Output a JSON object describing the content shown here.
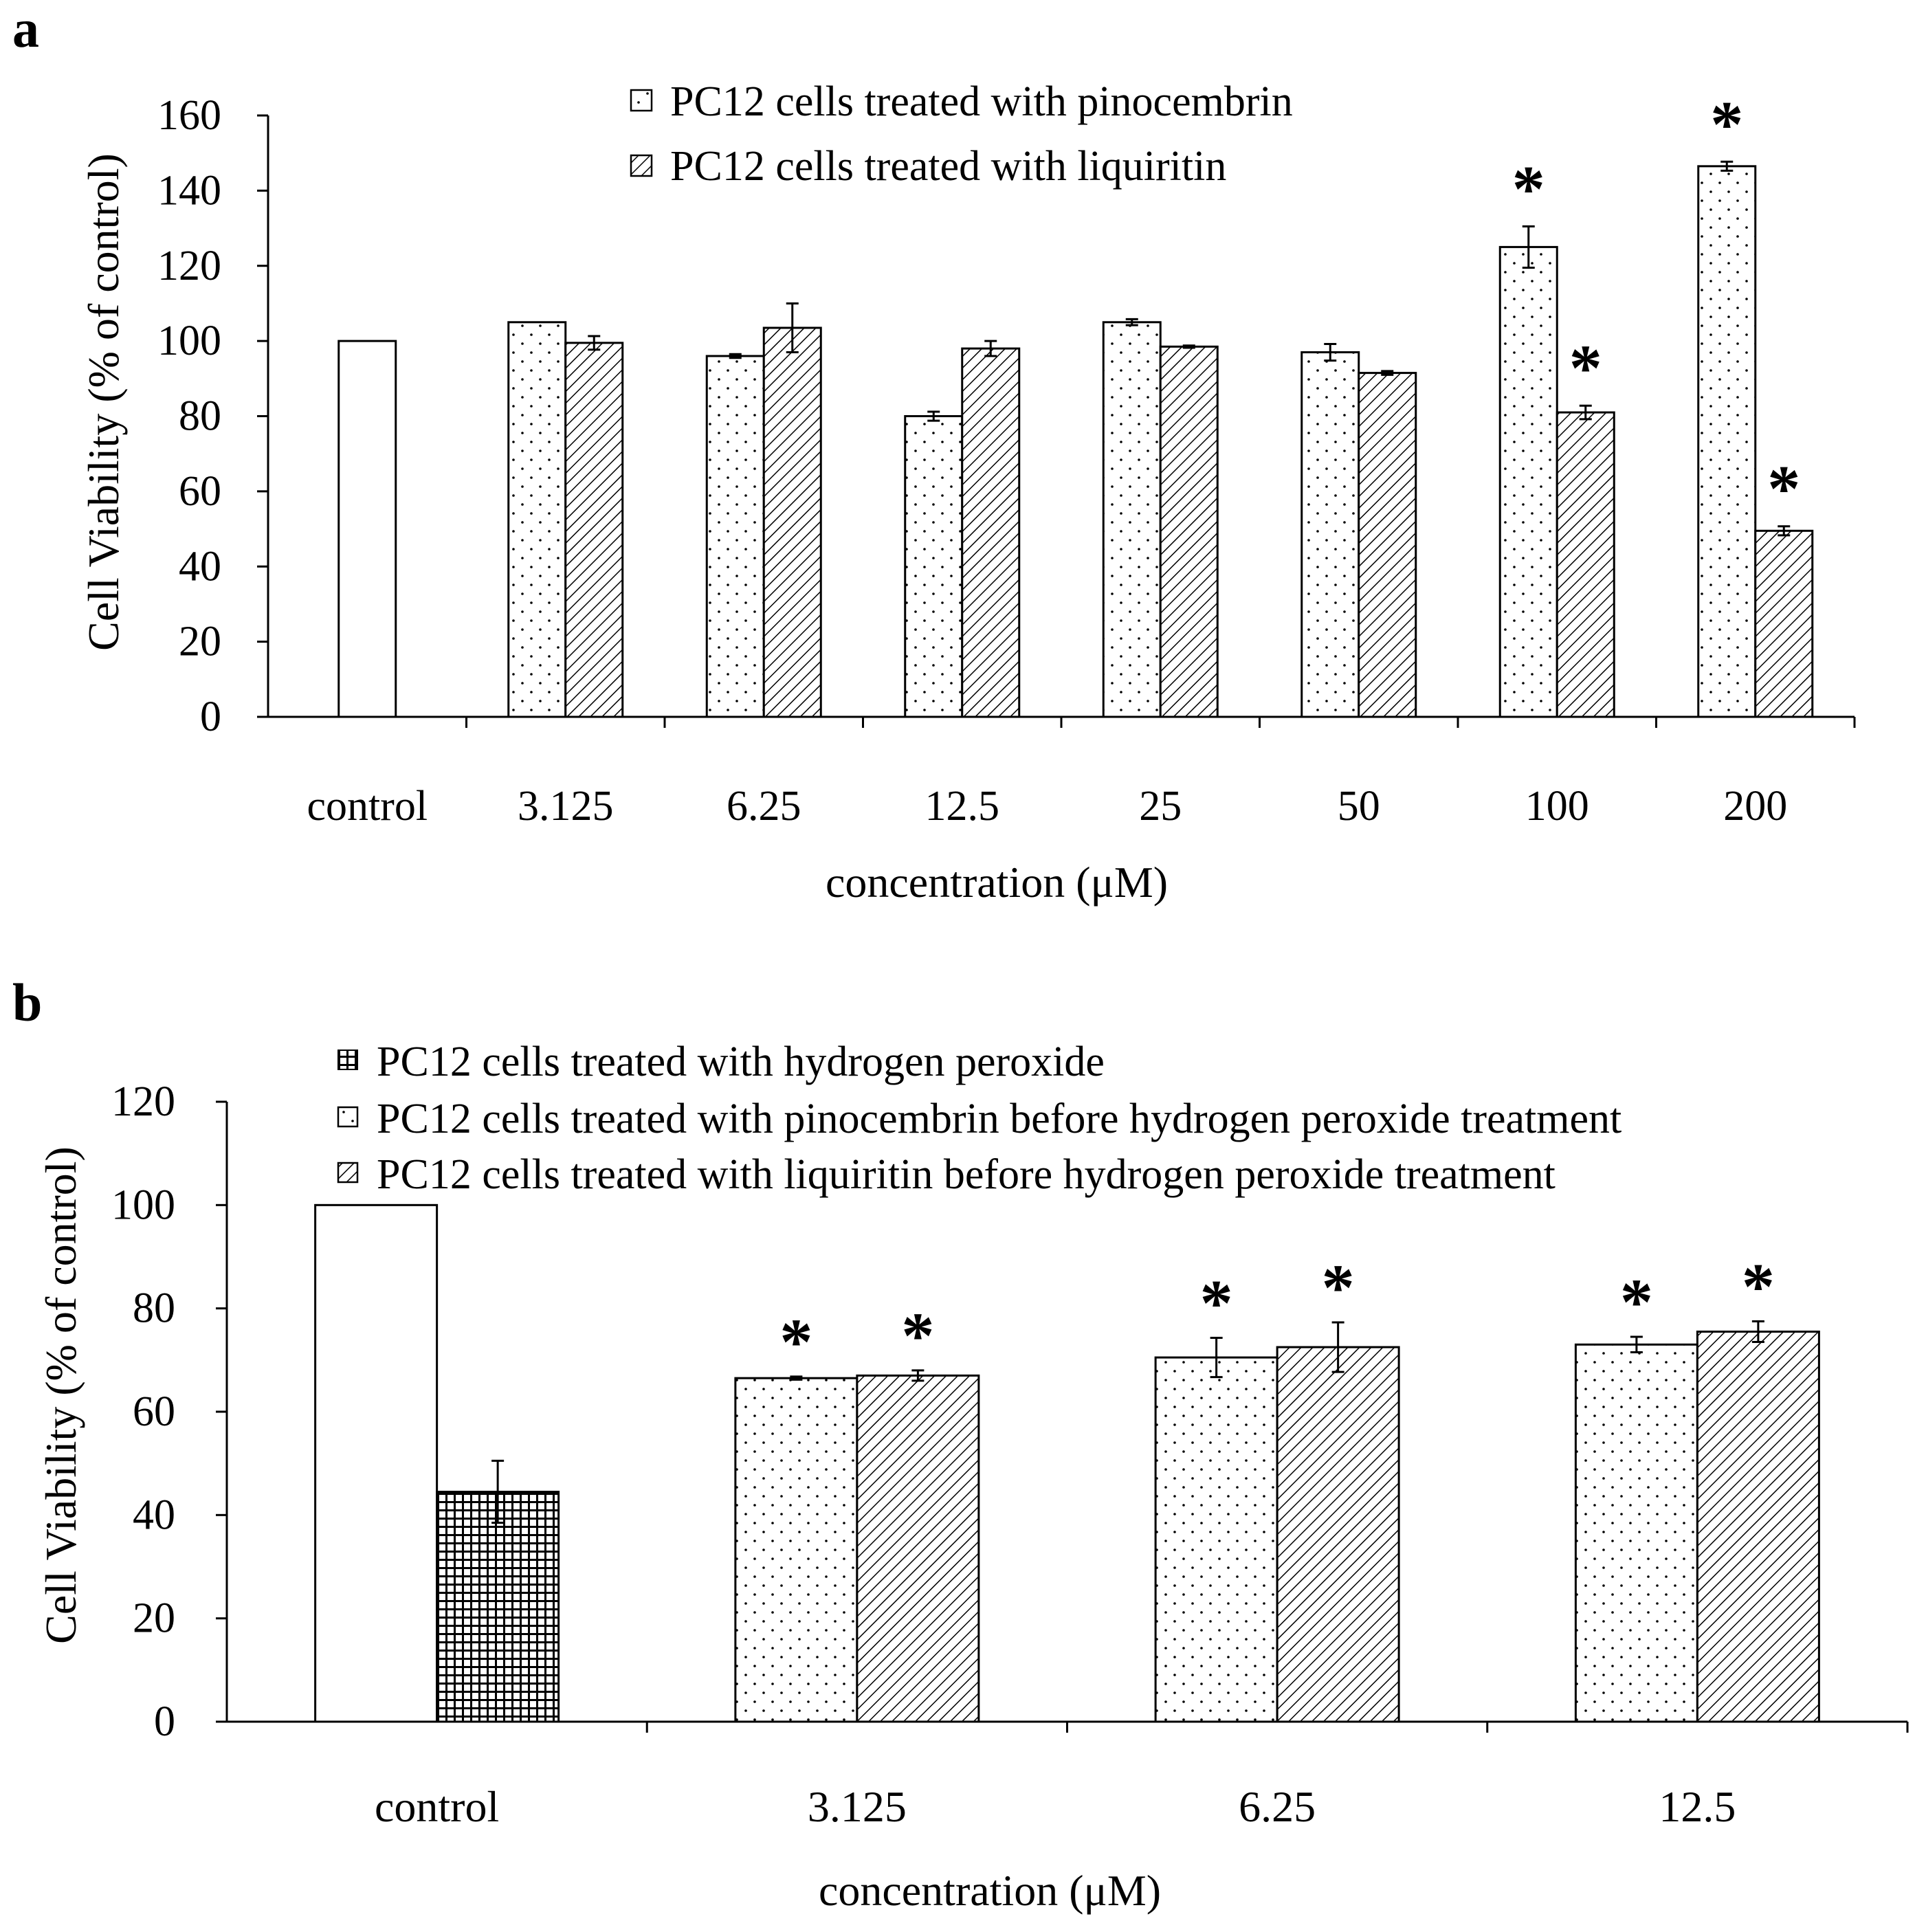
{
  "chart_data": [
    {
      "panel": "a",
      "type": "bar",
      "xlabel": "concentration (μM)",
      "ylabel": "Cell Viability (% of control)",
      "ylim": [
        0,
        160
      ],
      "yticks": [
        0,
        20,
        40,
        60,
        80,
        100,
        120,
        140,
        160
      ],
      "grid": false,
      "legend_position": "top",
      "categories": [
        "control",
        "3.125",
        "6.25",
        "12.5",
        "25",
        "50",
        "100",
        "200"
      ],
      "series": [
        {
          "name": "control",
          "pattern": "white",
          "legend": false,
          "values": [
            100,
            null,
            null,
            null,
            null,
            null,
            null,
            null
          ],
          "errors": [
            0,
            null,
            null,
            null,
            null,
            null,
            null,
            null
          ]
        },
        {
          "name": "PC12 cells treated with pinocembrin",
          "pattern": "dots",
          "values": [
            null,
            105,
            96,
            80,
            105,
            97,
            125,
            146.5
          ],
          "errors": [
            null,
            0,
            0.5,
            1.2,
            0.8,
            2.2,
            5.5,
            1.2
          ],
          "significant": [
            false,
            false,
            false,
            false,
            false,
            false,
            true,
            true
          ]
        },
        {
          "name": "PC12 cells treated with liquiritin",
          "pattern": "hatch",
          "values": [
            null,
            99.5,
            103.5,
            98,
            98.5,
            91.5,
            81,
            49.5
          ],
          "errors": [
            null,
            1.8,
            6.5,
            2,
            0.3,
            0.5,
            1.8,
            1.2
          ],
          "significant": [
            false,
            false,
            false,
            false,
            false,
            false,
            true,
            true
          ]
        }
      ]
    },
    {
      "panel": "b",
      "type": "bar",
      "xlabel": "concentration (μM)",
      "ylabel": "Cell Viability (% of control)",
      "ylim": [
        0,
        120
      ],
      "yticks": [
        0,
        20,
        40,
        60,
        80,
        100,
        120
      ],
      "grid": false,
      "legend_position": "top",
      "categories": [
        "control",
        "3.125",
        "6.25",
        "12.5"
      ],
      "series": [
        {
          "name": "control",
          "pattern": "white",
          "legend": false,
          "values": [
            100,
            null,
            null,
            null
          ],
          "errors": [
            0,
            null,
            null,
            null
          ]
        },
        {
          "name": "PC12 cells treated with hydrogen peroxide",
          "pattern": "grid",
          "values": [
            44.5,
            null,
            null,
            null
          ],
          "errors": [
            6,
            null,
            null,
            null
          ]
        },
        {
          "name": "PC12 cells treated with pinocembrin before hydrogen peroxide treatment",
          "pattern": "dots",
          "values": [
            null,
            66.5,
            70.5,
            73
          ],
          "errors": [
            null,
            0.3,
            3.8,
            1.5
          ],
          "significant": [
            false,
            true,
            true,
            true
          ]
        },
        {
          "name": "PC12 cells treated with liquiritin before hydrogen peroxide treatment",
          "pattern": "hatch",
          "values": [
            null,
            67,
            72.5,
            75.5
          ],
          "errors": [
            null,
            1,
            4.8,
            2
          ],
          "significant": [
            false,
            true,
            true,
            true
          ]
        }
      ]
    }
  ],
  "significance_marker": "*"
}
